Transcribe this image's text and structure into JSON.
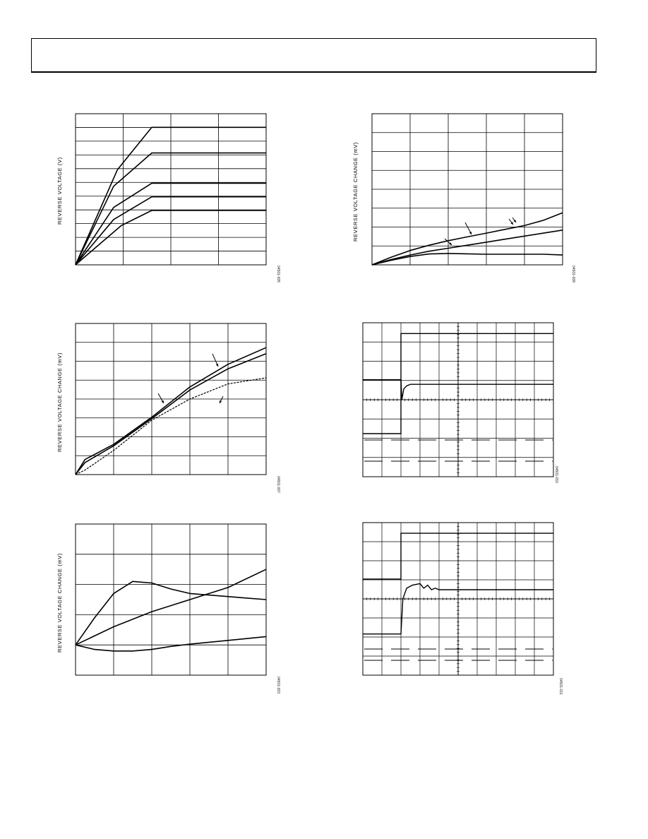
{
  "charts": [
    {
      "id": "chart-1",
      "ylabel": "REVERSE VOLTAGE (V)",
      "fig_id": "04501-005"
    },
    {
      "id": "chart-2",
      "ylabel": "REVERSE VOLTAGE CHANGE (mV)",
      "fig_id": "04501-008"
    },
    {
      "id": "chart-3",
      "ylabel": "REVERSE VOLTAGE CHANGE (mV)",
      "fig_id": "04501-007"
    },
    {
      "id": "scope-1",
      "ylabel": "",
      "fig_id": "04501-010"
    },
    {
      "id": "chart-4",
      "ylabel": "REVERSE VOLTAGE CHANGE (mV)",
      "fig_id": "04501-003"
    },
    {
      "id": "scope-2",
      "ylabel": "",
      "fig_id": "04501-011"
    }
  ],
  "chart_data": [
    {
      "type": "line",
      "grid": true,
      "grid_divisions": {
        "x": 4,
        "y": 11
      },
      "series": [
        {
          "points": [
            [
              0,
              0
            ],
            [
              0.22,
              0.63
            ],
            [
              0.4,
              0.91
            ],
            [
              1,
              0.91
            ]
          ]
        },
        {
          "points": [
            [
              0,
              0
            ],
            [
              0.2,
              0.52
            ],
            [
              0.4,
              0.74
            ],
            [
              1,
              0.74
            ]
          ]
        },
        {
          "points": [
            [
              0,
              0
            ],
            [
              0.2,
              0.38
            ],
            [
              0.3,
              0.46
            ],
            [
              0.4,
              0.54
            ],
            [
              1,
              0.54
            ]
          ]
        },
        {
          "points": [
            [
              0,
              0
            ],
            [
              0.2,
              0.3
            ],
            [
              0.4,
              0.45
            ],
            [
              1,
              0.45
            ]
          ]
        },
        {
          "points": [
            [
              0,
              0
            ],
            [
              0.24,
              0.26
            ],
            [
              0.4,
              0.36
            ],
            [
              1,
              0.36
            ]
          ]
        }
      ]
    },
    {
      "type": "line",
      "grid": true,
      "grid_divisions": {
        "x": 5,
        "y": 8
      },
      "series": [
        {
          "points": [
            [
              0,
              0
            ],
            [
              0.1,
              0.05
            ],
            [
              0.2,
              0.095
            ],
            [
              0.3,
              0.13
            ],
            [
              0.4,
              0.16
            ],
            [
              0.5,
              0.185
            ],
            [
              0.6,
              0.21
            ],
            [
              0.7,
              0.235
            ],
            [
              0.8,
              0.26
            ],
            [
              0.9,
              0.295
            ],
            [
              1,
              0.345
            ]
          ]
        },
        {
          "points": [
            [
              0,
              0
            ],
            [
              0.1,
              0.035
            ],
            [
              0.2,
              0.065
            ],
            [
              0.3,
              0.09
            ],
            [
              0.4,
              0.11
            ],
            [
              0.5,
              0.13
            ],
            [
              0.6,
              0.15
            ],
            [
              0.7,
              0.17
            ],
            [
              0.8,
              0.19
            ],
            [
              0.9,
              0.21
            ],
            [
              1,
              0.23
            ]
          ]
        },
        {
          "points": [
            [
              0,
              0
            ],
            [
              0.1,
              0.03
            ],
            [
              0.2,
              0.055
            ],
            [
              0.3,
              0.072
            ],
            [
              0.4,
              0.075
            ],
            [
              0.5,
              0.073
            ],
            [
              0.6,
              0.07
            ],
            [
              0.7,
              0.07
            ],
            [
              0.8,
              0.07
            ],
            [
              0.9,
              0.07
            ],
            [
              1,
              0.065
            ]
          ]
        }
      ]
    },
    {
      "type": "line",
      "grid": true,
      "grid_divisions": {
        "x": 5,
        "y": 8
      },
      "series": [
        {
          "points": [
            [
              0,
              0
            ],
            [
              0.05,
              0.1
            ],
            [
              0.2,
              0.2
            ],
            [
              0.4,
              0.38
            ],
            [
              0.6,
              0.58
            ],
            [
              0.8,
              0.73
            ],
            [
              1,
              0.84
            ]
          ]
        },
        {
          "points": [
            [
              0,
              0
            ],
            [
              0.05,
              0.08
            ],
            [
              0.2,
              0.19
            ],
            [
              0.4,
              0.37
            ],
            [
              0.6,
              0.56
            ],
            [
              0.8,
              0.7
            ],
            [
              1,
              0.8
            ]
          ]
        },
        {
          "points": [
            [
              0,
              0
            ],
            [
              0.05,
              0.03
            ],
            [
              0.2,
              0.16
            ],
            [
              0.4,
              0.36
            ],
            [
              0.6,
              0.5
            ],
            [
              0.8,
              0.6
            ],
            [
              1,
              0.64
            ]
          ],
          "dashed": true
        }
      ]
    },
    {
      "type": "line",
      "grid": true,
      "grid_divisions": {
        "x": 5,
        "y": 5
      },
      "series": [
        {
          "points": [
            [
              0,
              0
            ],
            [
              0.1,
              0.18
            ],
            [
              0.2,
              0.34
            ],
            [
              0.3,
              0.42
            ],
            [
              0.4,
              0.41
            ],
            [
              0.5,
              0.37
            ],
            [
              0.6,
              0.34
            ],
            [
              0.7,
              0.33
            ],
            [
              0.8,
              0.32
            ],
            [
              0.9,
              0.31
            ],
            [
              1,
              0.3
            ]
          ]
        },
        {
          "points": [
            [
              0,
              0
            ],
            [
              0.2,
              0.12
            ],
            [
              0.4,
              0.22
            ],
            [
              0.6,
              0.3
            ],
            [
              0.8,
              0.38
            ],
            [
              1,
              0.5
            ]
          ]
        },
        {
          "points": [
            [
              0,
              0
            ],
            [
              0.1,
              -0.03
            ],
            [
              0.2,
              -0.04
            ],
            [
              0.3,
              -0.04
            ],
            [
              0.4,
              -0.03
            ],
            [
              0.5,
              -0.01
            ],
            [
              0.6,
              0.005
            ],
            [
              0.8,
              0.03
            ],
            [
              1,
              0.055
            ]
          ]
        }
      ]
    }
  ]
}
